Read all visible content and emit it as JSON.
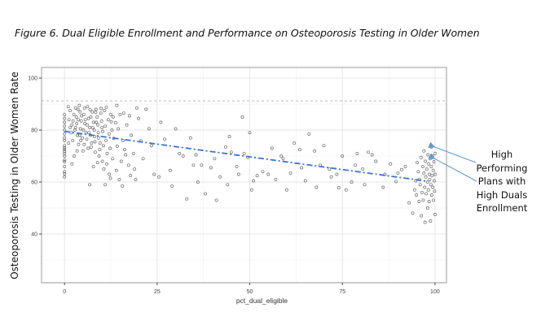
{
  "figure_title": "Figure 6. Dual Eligible Enrollment and Performance on Osteoporosis Testing in Older Women",
  "annotation": {
    "lines": [
      "High",
      "Performing",
      "Plans with",
      "High Duals",
      "Enrollment"
    ],
    "arrow_color": "#5b9bd5",
    "arrow_targets": [
      [
        99,
        73.5
      ],
      [
        99,
        69
      ]
    ]
  },
  "chart_data": {
    "type": "scatter",
    "title": "Figure 6. Dual Eligible Enrollment and Performance on Osteoporosis Testing in Older Women",
    "xlabel": "pct_dual_eligible",
    "ylabel": "Osteoporosis Testing in Older Women Rate",
    "xlim": [
      -6.2,
      103.1
    ],
    "ylim": [
      21.25,
      104.1
    ],
    "xticks": [
      0,
      25,
      50,
      75,
      100
    ],
    "xtick_labels": [
      "0",
      "25",
      "50",
      "75",
      "100"
    ],
    "yticks": [
      40,
      60,
      80,
      100
    ],
    "ytick_labels": [
      "40",
      "60",
      "80",
      "100"
    ],
    "grid": true,
    "legend": "none",
    "reference_line": {
      "y": 91.25,
      "style": "dashed",
      "color": "#bbbbbb"
    },
    "trend_line": {
      "x": [
        0,
        98
      ],
      "y": [
        79.5,
        60.3
      ],
      "style": "dashdot",
      "color": "#3a70e0"
    },
    "point_color": "#555555",
    "series": [
      {
        "name": "plans",
        "points": [
          [
            0,
            86
          ],
          [
            0,
            84.5
          ],
          [
            0,
            83
          ],
          [
            0,
            81.5
          ],
          [
            0,
            80
          ],
          [
            0,
            78.5
          ],
          [
            0,
            77
          ],
          [
            0,
            76
          ],
          [
            0,
            74
          ],
          [
            0,
            73.2
          ],
          [
            0,
            72.5
          ],
          [
            0,
            71.8
          ],
          [
            0,
            71
          ],
          [
            0,
            70
          ],
          [
            0,
            68.5
          ],
          [
            0,
            67.8
          ],
          [
            0,
            66
          ],
          [
            0,
            64
          ],
          [
            0,
            63.2
          ],
          [
            0,
            62
          ],
          [
            1,
            89
          ],
          [
            1.5,
            87.5
          ],
          [
            1.2,
            84
          ],
          [
            2,
            82
          ],
          [
            1.8,
            79
          ],
          [
            2.5,
            86
          ],
          [
            2.2,
            76
          ],
          [
            3,
            88.5
          ],
          [
            3.2,
            85
          ],
          [
            3,
            81
          ],
          [
            3.5,
            78
          ],
          [
            3.8,
            74.5
          ],
          [
            4,
            89.5
          ],
          [
            4.2,
            87
          ],
          [
            4.5,
            83.5
          ],
          [
            4.3,
            80.5
          ],
          [
            4.8,
            77
          ],
          [
            5,
            72
          ],
          [
            5.2,
            86
          ],
          [
            5.5,
            82.5
          ],
          [
            5.8,
            79
          ],
          [
            6,
            76.5
          ],
          [
            6.2,
            89
          ],
          [
            6.5,
            84.5
          ],
          [
            6.8,
            81
          ],
          [
            7,
            78
          ],
          [
            7.2,
            73.5
          ],
          [
            7.5,
            87
          ],
          [
            7.8,
            83
          ],
          [
            8,
            80
          ],
          [
            8.2,
            75.5
          ],
          [
            8.5,
            88
          ],
          [
            8.8,
            85
          ],
          [
            9,
            82
          ],
          [
            9.2,
            77
          ],
          [
            9.5,
            72.5
          ],
          [
            9.8,
            86.5
          ],
          [
            10,
            83.5
          ],
          [
            10.3,
            79.5
          ],
          [
            10.5,
            74
          ],
          [
            10.8,
            87.5
          ],
          [
            11,
            81.5
          ],
          [
            11.2,
            76
          ],
          [
            11.5,
            71
          ],
          [
            11.8,
            84
          ],
          [
            12,
            78.5
          ],
          [
            12.3,
            73
          ],
          [
            12.5,
            86
          ],
          [
            12.8,
            80
          ],
          [
            13,
            69
          ],
          [
            1.5,
            81
          ],
          [
            2.3,
            83.5
          ],
          [
            2.8,
            80
          ],
          [
            3.3,
            82.5
          ],
          [
            3.7,
            84
          ],
          [
            4.1,
            78
          ],
          [
            4.6,
            85.5
          ],
          [
            5.1,
            80
          ],
          [
            5.6,
            84
          ],
          [
            6.1,
            82
          ],
          [
            6.6,
            79
          ],
          [
            7.1,
            85
          ],
          [
            7.6,
            81
          ],
          [
            8.1,
            77.5
          ],
          [
            8.6,
            83
          ],
          [
            9.1,
            79
          ],
          [
            9.6,
            75
          ],
          [
            10.1,
            81
          ],
          [
            4.4,
            76
          ],
          [
            5.3,
            74.5
          ],
          [
            6.4,
            73
          ],
          [
            7.3,
            75
          ],
          [
            8.3,
            71.5
          ],
          [
            9.3,
            70
          ],
          [
            2.6,
            70
          ],
          [
            3.4,
            72
          ],
          [
            1.1,
            75
          ],
          [
            2,
            67
          ],
          [
            6.8,
            59
          ],
          [
            8.9,
            67.5
          ],
          [
            10.6,
            65
          ],
          [
            11.4,
            67
          ],
          [
            12.1,
            63
          ],
          [
            3.6,
            88
          ],
          [
            5.4,
            88.5
          ],
          [
            6.9,
            87.8
          ],
          [
            8.4,
            86.8
          ],
          [
            9.9,
            88.3
          ],
          [
            11.3,
            88.8
          ],
          [
            12.6,
            83.2
          ],
          [
            13.3,
            76.8
          ],
          [
            13.8,
            82.8
          ],
          [
            14.2,
            73.8
          ],
          [
            14.5,
            80.5
          ],
          [
            15,
            86
          ],
          [
            15.3,
            68
          ],
          [
            15.8,
            76
          ],
          [
            16.2,
            72.5
          ],
          [
            16.8,
            82
          ],
          [
            17.3,
            66.5
          ],
          [
            18,
            78
          ],
          [
            18.6,
            71
          ],
          [
            19.2,
            61
          ],
          [
            20,
            84.5
          ],
          [
            20.6,
            75.8
          ],
          [
            21.2,
            69
          ],
          [
            22,
            88
          ],
          [
            22.8,
            80.5
          ],
          [
            23.5,
            74
          ],
          [
            24.2,
            63
          ],
          [
            14,
            64.5
          ],
          [
            14.8,
            61
          ],
          [
            15.6,
            58.5
          ],
          [
            16.5,
            70.5
          ],
          [
            17.8,
            62.5
          ],
          [
            18.9,
            65
          ],
          [
            12.4,
            61.5
          ],
          [
            11,
            59
          ],
          [
            10.2,
            68
          ],
          [
            7.8,
            66
          ],
          [
            13.1,
            85
          ],
          [
            14.1,
            89.5
          ],
          [
            16,
            86.5
          ],
          [
            17.5,
            85.5
          ],
          [
            19.5,
            88.5
          ],
          [
            26,
            83
          ],
          [
            27,
            76.5
          ],
          [
            28.5,
            64.5
          ],
          [
            30,
            80.5
          ],
          [
            31,
            71
          ],
          [
            32,
            70
          ],
          [
            33,
            53.5
          ],
          [
            34,
            77
          ],
          [
            35.5,
            70.5
          ],
          [
            36,
            60
          ],
          [
            37,
            66.5
          ],
          [
            38,
            55.5
          ],
          [
            39.5,
            65.5
          ],
          [
            40.5,
            69
          ],
          [
            41,
            53
          ],
          [
            42,
            62
          ],
          [
            43.5,
            73.5
          ],
          [
            44,
            59
          ],
          [
            45,
            71.5
          ],
          [
            46.5,
            66
          ],
          [
            48,
            85
          ],
          [
            48.5,
            71
          ],
          [
            49.5,
            69.5
          ],
          [
            50.5,
            57
          ],
          [
            50,
            79
          ],
          [
            51,
            60.5
          ],
          [
            52,
            62.5
          ],
          [
            53.5,
            64
          ],
          [
            55,
            63
          ],
          [
            56,
            73
          ],
          [
            57,
            61
          ],
          [
            58.5,
            70
          ],
          [
            60,
            57
          ],
          [
            62,
            75
          ],
          [
            63.5,
            72.5
          ],
          [
            64,
            65.5
          ],
          [
            66,
            78.5
          ],
          [
            67.5,
            72
          ],
          [
            68,
            58
          ],
          [
            69,
            66.5
          ],
          [
            70,
            74
          ],
          [
            71.5,
            65
          ],
          [
            72,
            62
          ],
          [
            73.5,
            63
          ],
          [
            75,
            70
          ],
          [
            76,
            57
          ],
          [
            77.5,
            60
          ],
          [
            79,
            71
          ],
          [
            80.5,
            65
          ],
          [
            81,
            59
          ],
          [
            83,
            70.5
          ],
          [
            84,
            68
          ],
          [
            86,
            58
          ],
          [
            88,
            67
          ],
          [
            90,
            63.5
          ],
          [
            92,
            66
          ],
          [
            25.5,
            62
          ],
          [
            29,
            58.5
          ],
          [
            34.8,
            66.5
          ],
          [
            44.5,
            77.5
          ],
          [
            47,
            63
          ],
          [
            59,
            69
          ],
          [
            61,
            63.5
          ],
          [
            65,
            60.5
          ],
          [
            74,
            57.8
          ],
          [
            78.5,
            66.5
          ],
          [
            82,
            71.5
          ],
          [
            86.5,
            63
          ],
          [
            89.5,
            60.2
          ],
          [
            91,
            64.8
          ],
          [
            93,
            52
          ],
          [
            94,
            48
          ],
          [
            94.5,
            57
          ],
          [
            95,
            55
          ],
          [
            95.2,
            67.5
          ],
          [
            95.5,
            64
          ],
          [
            95.8,
            61
          ],
          [
            96,
            59
          ],
          [
            96.2,
            69.5
          ],
          [
            96.5,
            56
          ],
          [
            96.7,
            66
          ],
          [
            96.8,
            53
          ],
          [
            97,
            63.5
          ],
          [
            97,
            72
          ],
          [
            97.2,
            58
          ],
          [
            97.4,
            68
          ],
          [
            97.5,
            62
          ],
          [
            97.6,
            55.5
          ],
          [
            97.8,
            65
          ],
          [
            98,
            50
          ],
          [
            98,
            60
          ],
          [
            98.1,
            70.5
          ],
          [
            98.2,
            57
          ],
          [
            98.3,
            67
          ],
          [
            98.4,
            52.5
          ],
          [
            98.5,
            63
          ],
          [
            98.6,
            61
          ],
          [
            98.7,
            69
          ],
          [
            98.8,
            45
          ],
          [
            98.9,
            59
          ],
          [
            99,
            73.5
          ],
          [
            99,
            66
          ],
          [
            99.1,
            55
          ],
          [
            99.2,
            62.5
          ],
          [
            99.3,
            70
          ],
          [
            99.4,
            58
          ],
          [
            99.5,
            64.5
          ],
          [
            99.6,
            53
          ],
          [
            99.7,
            67.8
          ],
          [
            99.8,
            60.5
          ],
          [
            99.9,
            56.5
          ],
          [
            100,
            71
          ],
          [
            100,
            63
          ],
          [
            100,
            47.5
          ],
          [
            96.3,
            47
          ],
          [
            97.3,
            44.5
          ],
          [
            95.7,
            52.5
          ],
          [
            94.8,
            60.5
          ]
        ]
      }
    ]
  }
}
